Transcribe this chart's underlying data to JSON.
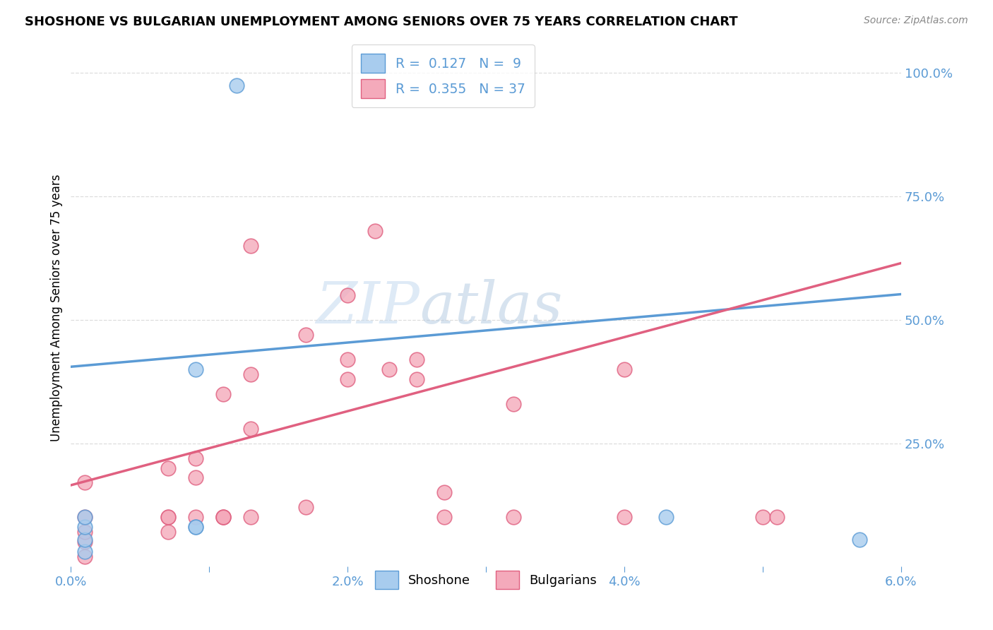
{
  "title": "SHOSHONE VS BULGARIAN UNEMPLOYMENT AMONG SENIORS OVER 75 YEARS CORRELATION CHART",
  "source": "Source: ZipAtlas.com",
  "ylabel": "Unemployment Among Seniors over 75 years",
  "xlim": [
    0.0,
    0.06
  ],
  "ylim": [
    0.0,
    1.05
  ],
  "shoshone_R": 0.127,
  "shoshone_N": 9,
  "bulgarian_R": 0.355,
  "bulgarian_N": 37,
  "shoshone_color": "#A8CCEE",
  "bulgarian_color": "#F4AABB",
  "shoshone_line_color": "#5B9BD5",
  "bulgarian_line_color": "#E06080",
  "watermark_zip": "ZIP",
  "watermark_atlas": "atlas",
  "shoshone_x": [
    0.001,
    0.001,
    0.001,
    0.001,
    0.009,
    0.009,
    0.009,
    0.043,
    0.057
  ],
  "shoshone_y": [
    0.03,
    0.055,
    0.08,
    0.1,
    0.4,
    0.08,
    0.08,
    0.1,
    0.055
  ],
  "shoshone_outlier_x": [
    0.012
  ],
  "shoshone_outlier_y": [
    0.975
  ],
  "bulgarian_x": [
    0.001,
    0.001,
    0.001,
    0.001,
    0.001,
    0.007,
    0.007,
    0.007,
    0.007,
    0.009,
    0.009,
    0.009,
    0.011,
    0.011,
    0.011,
    0.011,
    0.013,
    0.013,
    0.013,
    0.013,
    0.017,
    0.017,
    0.02,
    0.02,
    0.02,
    0.022,
    0.023,
    0.025,
    0.025,
    0.027,
    0.027,
    0.032,
    0.032,
    0.04,
    0.04,
    0.05,
    0.051
  ],
  "bulgarian_y": [
    0.02,
    0.05,
    0.07,
    0.1,
    0.17,
    0.07,
    0.1,
    0.1,
    0.2,
    0.1,
    0.18,
    0.22,
    0.1,
    0.1,
    0.35,
    0.1,
    0.1,
    0.28,
    0.39,
    0.65,
    0.12,
    0.47,
    0.38,
    0.42,
    0.55,
    0.68,
    0.4,
    0.38,
    0.42,
    0.1,
    0.15,
    0.33,
    0.1,
    0.4,
    0.1,
    0.1,
    0.1
  ],
  "grid_color": "#DDDDDD",
  "background_color": "#FFFFFF",
  "axis_color": "#5B9BD5",
  "shoshone_line_intercept": 0.405,
  "shoshone_line_slope": 2.45,
  "bulgarian_line_intercept": 0.165,
  "bulgarian_line_slope": 7.5
}
